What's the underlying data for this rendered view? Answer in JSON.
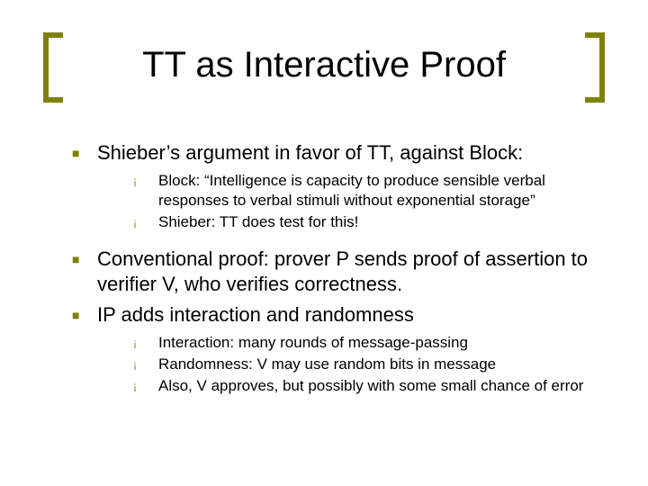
{
  "colors": {
    "accent": "#808000",
    "text": "#000000",
    "background": "#ffffff"
  },
  "title": "TT as Interactive Proof",
  "bullets_l1": [
    "Shieber’s argument in favor of TT, against Block:",
    "Conventional proof: prover P sends proof of assertion to verifier V, who verifies correctness.",
    "IP adds interaction and randomness"
  ],
  "sub_group_1": [
    "Block: “Intelligence is capacity to produce sensible verbal responses to verbal stimuli without exponential storage”",
    "Shieber: TT does test for this!"
  ],
  "sub_group_2": [
    "Interaction: many rounds of message-passing",
    "Randomness: V may use random bits in message",
    "Also, V approves, but possibly with some small chance of error"
  ],
  "glyphs": {
    "square": "■",
    "circle": "¡"
  }
}
